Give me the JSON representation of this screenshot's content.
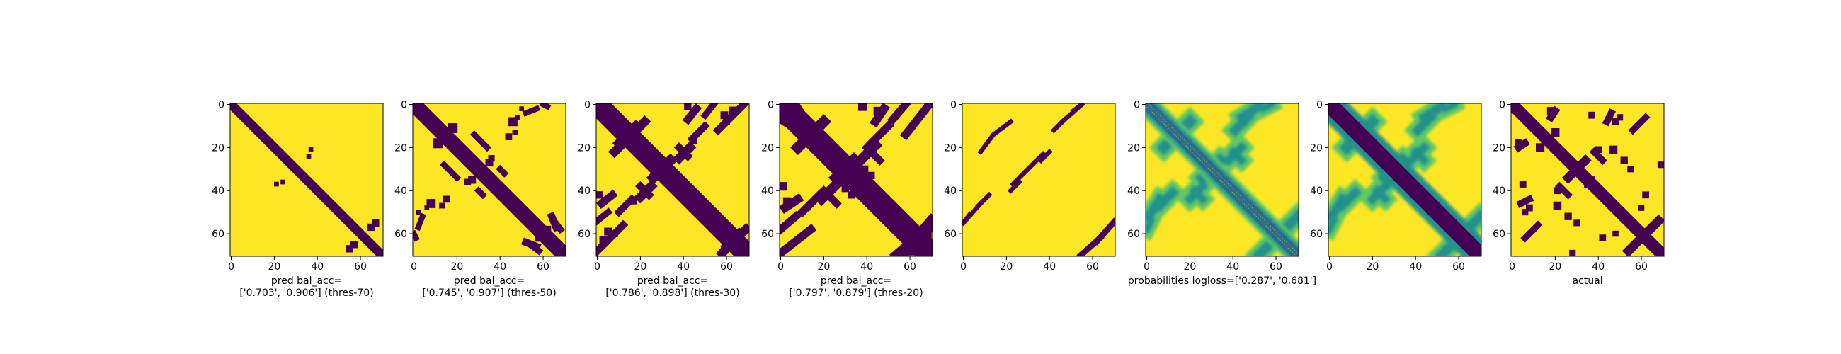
{
  "chart_data": [
    {
      "type": "heatmap",
      "panel": "pred-thres-70",
      "xlabel_line1": "pred bal_acc=",
      "xlabel_line2": "['0.703', '0.906'] (thres-70)",
      "xticks": [
        0,
        20,
        40,
        60
      ],
      "yticks": [
        0,
        20,
        40,
        60
      ],
      "xlim": [
        0,
        71
      ],
      "ylim": [
        71,
        0
      ],
      "matrix_size": 71,
      "colormap": "viridis",
      "value_encoding": "binary (0 = dark purple, 1 = yellow)",
      "diagonal_band_halfwidth": 1,
      "off_diagonal_segments": [],
      "blobs": [
        {
          "row": 21,
          "col": 37,
          "r": 0.6
        },
        {
          "row": 36,
          "col": 24,
          "r": 0.6
        },
        {
          "row": 55,
          "col": 67,
          "r": 1.2
        },
        {
          "row": 57,
          "col": 65,
          "r": 1.2
        }
      ]
    },
    {
      "type": "heatmap",
      "panel": "pred-thres-50",
      "xlabel_line1": "pred bal_acc=",
      "xlabel_line2": "['0.745', '0.907'] (thres-50)",
      "xticks": [
        0,
        20,
        40,
        60
      ],
      "yticks": [
        0,
        20,
        40,
        60
      ],
      "xlim": [
        0,
        71
      ],
      "ylim": [
        71,
        0
      ],
      "matrix_size": 71,
      "colormap": "viridis",
      "value_encoding": "binary (0 = dark purple, 1 = yellow)",
      "diagonal_band_halfwidth": 2,
      "off_diagonal_segments": [
        {
          "r0": 14,
          "c0": 28,
          "r1": 20,
          "c1": 34,
          "w": 0.9
        },
        {
          "r0": 30,
          "c0": 40,
          "r1": 32,
          "c1": 42,
          "w": 0.9
        },
        {
          "r0": 52,
          "c0": 4,
          "r1": 57,
          "c1": 2,
          "w": 0.8
        },
        {
          "r0": 60,
          "c0": 0,
          "r1": 62,
          "c1": 1,
          "w": 0.8
        },
        {
          "r0": 52,
          "c0": 64,
          "r1": 57,
          "c1": 66,
          "w": 1.2
        },
        {
          "r0": 65,
          "c0": 54,
          "r1": 68,
          "c1": 58,
          "w": 1.0
        }
      ],
      "blobs": [
        {
          "row": 8,
          "col": 46,
          "r": 1.6
        },
        {
          "row": 6,
          "col": 48,
          "r": 0.6
        },
        {
          "row": 2,
          "col": 50,
          "r": 0.6
        },
        {
          "row": 18,
          "col": 11,
          "r": 1.8
        },
        {
          "row": 15,
          "col": 16,
          "r": 1.2
        },
        {
          "row": 35,
          "col": 27,
          "r": 1.3
        },
        {
          "row": 36,
          "col": 25,
          "r": 1.0
        },
        {
          "row": 44,
          "col": 15,
          "r": 1.1
        },
        {
          "row": 47,
          "col": 13,
          "r": 0.8
        },
        {
          "row": 58,
          "col": 62,
          "r": 1.2
        }
      ]
    },
    {
      "type": "heatmap",
      "panel": "pred-thres-30",
      "xlabel_line1": "pred bal_acc=",
      "xlabel_line2": "['0.786', '0.898'] (thres-30)",
      "xticks": [
        0,
        20,
        40,
        60
      ],
      "yticks": [
        0,
        20,
        40,
        60
      ],
      "xlim": [
        0,
        71
      ],
      "ylim": [
        71,
        0
      ],
      "matrix_size": 71,
      "colormap": "viridis",
      "value_encoding": "binary (0 = dark purple, 1 = yellow)",
      "diagonal_band_halfwidth": 3,
      "off_diagonal_segments": [
        {
          "r0": 14,
          "c0": 14,
          "r1": 10,
          "c1": 18,
          "w": 1.6
        },
        {
          "r0": 22,
          "c0": 8,
          "r1": 18,
          "c1": 12,
          "w": 1.6
        },
        {
          "r0": 33,
          "c0": 27,
          "r1": 26,
          "c1": 34,
          "w": 1.8
        },
        {
          "r0": 43,
          "c0": 20,
          "r1": 38,
          "c1": 25,
          "w": 1.6
        },
        {
          "r0": 20,
          "c0": 38,
          "r1": 24,
          "c1": 42,
          "w": 1.2
        },
        {
          "r0": 12,
          "c0": 56,
          "r1": 0,
          "c1": 68,
          "w": 1.2
        },
        {
          "r0": 16,
          "c0": 44,
          "r1": 10,
          "c1": 50,
          "w": 1.1
        },
        {
          "r0": 42,
          "c0": 7,
          "r1": 46,
          "c1": 2,
          "w": 1.3
        },
        {
          "r0": 50,
          "c0": 5,
          "r1": 54,
          "c1": 0,
          "w": 1.0
        },
        {
          "r0": 66,
          "c0": 60,
          "r1": 58,
          "c1": 69,
          "w": 1.6
        }
      ],
      "blobs": [
        {
          "row": 1,
          "col": 42,
          "r": 1.2
        },
        {
          "row": 3,
          "col": 63,
          "r": 1.5
        },
        {
          "row": 5,
          "col": 59,
          "r": 1.3
        },
        {
          "row": 8,
          "col": 60,
          "r": 1.1
        },
        {
          "row": 45,
          "col": 17,
          "r": 0.9
        },
        {
          "row": 61,
          "col": 61,
          "r": 1.2
        },
        {
          "row": 64,
          "col": 67,
          "r": 1.2
        }
      ]
    },
    {
      "type": "heatmap",
      "panel": "pred-thres-20",
      "xlabel_line1": "pred bal_acc=",
      "xlabel_line2": "['0.797', '0.879'] (thres-20)",
      "xticks": [
        0,
        20,
        40,
        60
      ],
      "yticks": [
        0,
        20,
        40,
        60
      ],
      "xlim": [
        0,
        71
      ],
      "ylim": [
        71,
        0
      ],
      "matrix_size": 71,
      "colormap": "viridis",
      "value_encoding": "binary (0 = dark purple, 1 = yellow)",
      "diagonal_band_halfwidth": 3.5,
      "off_diagonal_segments": [
        {
          "r0": 16,
          "c0": 12,
          "r1": 8,
          "c1": 20,
          "w": 2.0
        },
        {
          "r0": 6,
          "c0": 2,
          "r1": 2,
          "c1": 8,
          "w": 1.5
        },
        {
          "r0": 34,
          "c0": 26,
          "r1": 26,
          "c1": 34,
          "w": 2.2
        },
        {
          "r0": 44,
          "c0": 19,
          "r1": 36,
          "c1": 27,
          "w": 1.8
        },
        {
          "r0": 14,
          "c0": 58,
          "r1": 0,
          "c1": 69,
          "w": 1.4
        },
        {
          "r0": 18,
          "c0": 42,
          "r1": 10,
          "c1": 50,
          "w": 1.3
        },
        {
          "r0": 20,
          "c0": 40,
          "r1": 26,
          "c1": 46,
          "w": 1.2
        },
        {
          "r0": 44,
          "c0": 8,
          "r1": 48,
          "c1": 2,
          "w": 1.5
        },
        {
          "r0": 52,
          "c0": 7,
          "r1": 58,
          "c1": 0,
          "w": 1.3
        },
        {
          "r0": 68,
          "c0": 58,
          "r1": 54,
          "c1": 70,
          "w": 2.0
        },
        {
          "r0": 60,
          "c0": 57,
          "r1": 66,
          "c1": 63,
          "w": 1.6
        }
      ],
      "blobs": [
        {
          "row": 1,
          "col": 38,
          "r": 1.5
        },
        {
          "row": 3,
          "col": 45,
          "r": 1.4
        },
        {
          "row": 30,
          "col": 39,
          "r": 1.2
        },
        {
          "row": 33,
          "col": 42,
          "r": 1.2
        },
        {
          "row": 48,
          "col": 12,
          "r": 1.0
        },
        {
          "row": 60,
          "col": 68,
          "r": 1.6
        }
      ]
    },
    {
      "type": "heatmap",
      "panel": "pred-thres-sparse",
      "xlabel_line1": "",
      "xlabel_line2": "",
      "xticks": [
        0,
        20,
        40,
        60
      ],
      "yticks": [
        0,
        20,
        40,
        60
      ],
      "xlim": [
        0,
        71
      ],
      "ylim": [
        71,
        0
      ],
      "matrix_size": 71,
      "colormap": "viridis",
      "value_encoding": "binary (0 = dark purple, 1 = yellow)",
      "diagonal_band_halfwidth": -1,
      "off_diagonal_segments": [
        {
          "r0": 14,
          "c0": 14,
          "r1": 8,
          "c1": 22,
          "w": 0.55
        },
        {
          "r0": 8,
          "c0": 46,
          "r1": 0,
          "c1": 55,
          "w": 0.55
        },
        {
          "r0": 33,
          "c0": 27,
          "r1": 23,
          "c1": 37,
          "w": 0.55
        },
        {
          "r0": 40,
          "c0": 22,
          "r1": 36,
          "c1": 26,
          "w": 0.55
        },
        {
          "r0": 47,
          "c0": 7,
          "r1": 42,
          "c1": 12,
          "w": 0.55
        },
        {
          "r0": 55,
          "c0": 0,
          "r1": 51,
          "c1": 3,
          "w": 0.55
        },
        {
          "r0": 70,
          "c0": 55,
          "r1": 62,
          "c1": 64,
          "w": 0.55
        },
        {
          "r0": 63,
          "c0": 62,
          "r1": 54,
          "c1": 70,
          "w": 0.55
        }
      ],
      "blobs": []
    },
    {
      "type": "heatmap",
      "panel": "probabilities",
      "xlabel_line1": "probabilities logloss=['0.287', '0.681']",
      "xlabel_line2": "",
      "xticks": [
        0,
        20,
        40,
        60
      ],
      "yticks": [
        0,
        20,
        40,
        60
      ],
      "xlim": [
        0,
        71
      ],
      "ylim": [
        71,
        0
      ],
      "matrix_size": 71,
      "colormap": "viridis",
      "value_encoding": "continuous probability",
      "diagonal": "mid-teal band with striated texture",
      "features": [
        "teal blobs near (10,15), (5,48), (30,30), (18,12), (45,8), (56,66)",
        "lime-green haze around off-diagonal streaks"
      ]
    },
    {
      "type": "heatmap",
      "panel": "probabilities-2",
      "xlabel_line1": "",
      "xlabel_line2": "",
      "xticks": [
        0,
        20,
        40,
        60
      ],
      "yticks": [
        0,
        20,
        40,
        60
      ],
      "xlim": [
        0,
        71
      ],
      "ylim": [
        71,
        0
      ],
      "matrix_size": 71,
      "colormap": "viridis",
      "value_encoding": "continuous probability",
      "diagonal": "dark purple band with teal halo",
      "features": [
        "teal streaks near (15,12), (5,48), (30,30), (45,8), (56,66)"
      ]
    },
    {
      "type": "heatmap",
      "panel": "actual",
      "xlabel_line1": "actual",
      "xlabel_line2": "",
      "xticks": [
        0,
        20,
        40,
        60
      ],
      "yticks": [
        0,
        20,
        40,
        60
      ],
      "xlim": [
        0,
        71
      ],
      "ylim": [
        71,
        0
      ],
      "matrix_size": 71,
      "colormap": "viridis",
      "value_encoding": "binary (0 = dark purple, 1 = yellow)",
      "diagonal_band_halfwidth": 1.5,
      "off_diagonal_segments": [
        {
          "r0": 34,
          "c0": 26,
          "r1": 26,
          "c1": 34,
          "w": 1.5
        },
        {
          "r0": 22,
          "c0": 38,
          "r1": 26,
          "c1": 42,
          "w": 1.0
        },
        {
          "r0": 12,
          "c0": 56,
          "r1": 6,
          "c1": 62,
          "w": 1.0
        },
        {
          "r0": 18,
          "c0": 6,
          "r1": 20,
          "c1": 3,
          "w": 1.2
        },
        {
          "r0": 46,
          "c0": 4,
          "r1": 44,
          "c1": 8,
          "w": 1.1
        },
        {
          "r0": 62,
          "c0": 60,
          "r1": 54,
          "c1": 68,
          "w": 1.6
        }
      ],
      "blobs": [
        {
          "row": 3,
          "col": 18,
          "r": 1.3
        },
        {
          "row": 5,
          "col": 37,
          "r": 1.1
        },
        {
          "row": 6,
          "col": 50,
          "r": 1.0
        },
        {
          "row": 8,
          "col": 48,
          "r": 1.1
        },
        {
          "row": 20,
          "col": 13,
          "r": 1.5
        },
        {
          "row": 26,
          "col": 52,
          "r": 1.2
        },
        {
          "row": 30,
          "col": 55,
          "r": 1.0
        },
        {
          "row": 28,
          "col": 69,
          "r": 1.0
        },
        {
          "row": 40,
          "col": 21,
          "r": 1.1
        },
        {
          "row": 47,
          "col": 21,
          "r": 1.4
        },
        {
          "row": 42,
          "col": 62,
          "r": 1.1
        },
        {
          "row": 48,
          "col": 60,
          "r": 0.9
        },
        {
          "row": 35,
          "col": 37,
          "r": 1.1
        }
      ]
    }
  ],
  "colors": {
    "viridis_low": "#440154",
    "viridis_midlow": "#31688e",
    "viridis_mid": "#21918c",
    "viridis_midhigh": "#5ec962",
    "viridis_high": "#fde725",
    "axis": "#000000",
    "background": "#ffffff"
  }
}
